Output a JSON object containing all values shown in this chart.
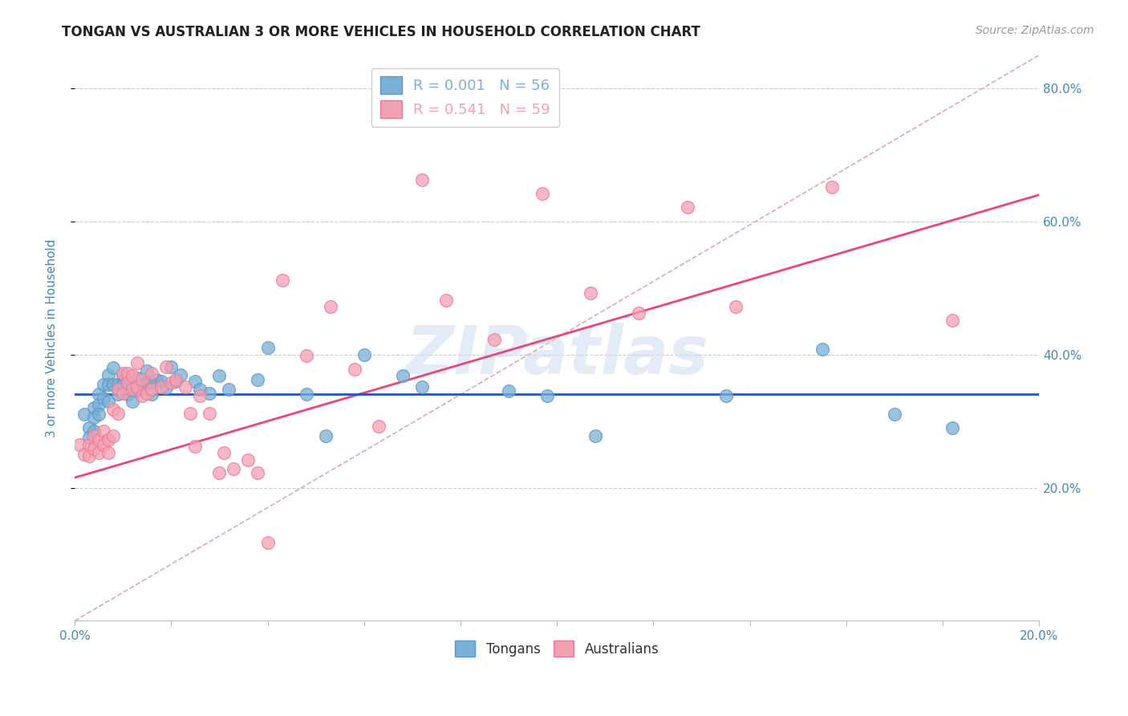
{
  "title": "TONGAN VS AUSTRALIAN 3 OR MORE VEHICLES IN HOUSEHOLD CORRELATION CHART",
  "source": "Source: ZipAtlas.com",
  "ylabel": "3 or more Vehicles in Household",
  "xlim": [
    0.0,
    0.2
  ],
  "ylim": [
    0.0,
    0.85
  ],
  "right_yticks": [
    0.2,
    0.4,
    0.6,
    0.8
  ],
  "right_ytick_labels": [
    "20.0%",
    "40.0%",
    "60.0%",
    "80.0%"
  ],
  "xticks": [
    0.0,
    0.02,
    0.04,
    0.06,
    0.08,
    0.1,
    0.12,
    0.14,
    0.16,
    0.18,
    0.2
  ],
  "xtick_labels": [
    "0.0%",
    "",
    "",
    "",
    "",
    "",
    "",
    "",
    "",
    "",
    "20.0%"
  ],
  "blue_R": "0.001",
  "blue_N": "56",
  "pink_R": "0.541",
  "pink_N": "59",
  "blue_color": "#7BAFD4",
  "blue_edge": "#5599CC",
  "pink_color": "#F4A0B0",
  "pink_edge": "#EE7799",
  "legend_blue_label": "Tongans",
  "legend_pink_label": "Australians",
  "watermark": "ZIPatlas",
  "blue_scatter_x": [
    0.002,
    0.003,
    0.003,
    0.004,
    0.004,
    0.004,
    0.005,
    0.005,
    0.005,
    0.006,
    0.006,
    0.007,
    0.007,
    0.007,
    0.008,
    0.008,
    0.009,
    0.009,
    0.01,
    0.01,
    0.011,
    0.011,
    0.012,
    0.012,
    0.013,
    0.013,
    0.014,
    0.015,
    0.015,
    0.016,
    0.016,
    0.017,
    0.018,
    0.019,
    0.02,
    0.021,
    0.022,
    0.025,
    0.026,
    0.028,
    0.03,
    0.032,
    0.038,
    0.04,
    0.048,
    0.052,
    0.06,
    0.068,
    0.072,
    0.09,
    0.098,
    0.108,
    0.135,
    0.155,
    0.17,
    0.182
  ],
  "blue_scatter_y": [
    0.31,
    0.29,
    0.275,
    0.32,
    0.305,
    0.285,
    0.34,
    0.325,
    0.31,
    0.355,
    0.335,
    0.37,
    0.355,
    0.33,
    0.38,
    0.355,
    0.355,
    0.34,
    0.37,
    0.355,
    0.36,
    0.34,
    0.35,
    0.33,
    0.365,
    0.345,
    0.355,
    0.375,
    0.358,
    0.358,
    0.34,
    0.362,
    0.36,
    0.35,
    0.382,
    0.36,
    0.37,
    0.36,
    0.348,
    0.342,
    0.368,
    0.348,
    0.362,
    0.41,
    0.34,
    0.278,
    0.4,
    0.368,
    0.352,
    0.345,
    0.338,
    0.278,
    0.338,
    0.408,
    0.31,
    0.29
  ],
  "pink_scatter_x": [
    0.001,
    0.002,
    0.003,
    0.003,
    0.004,
    0.004,
    0.005,
    0.005,
    0.006,
    0.006,
    0.007,
    0.007,
    0.008,
    0.008,
    0.009,
    0.009,
    0.01,
    0.01,
    0.011,
    0.011,
    0.012,
    0.012,
    0.013,
    0.013,
    0.014,
    0.014,
    0.015,
    0.016,
    0.016,
    0.018,
    0.019,
    0.02,
    0.021,
    0.023,
    0.024,
    0.025,
    0.026,
    0.028,
    0.03,
    0.031,
    0.033,
    0.036,
    0.038,
    0.04,
    0.043,
    0.048,
    0.053,
    0.058,
    0.063,
    0.072,
    0.077,
    0.087,
    0.097,
    0.107,
    0.117,
    0.127,
    0.137,
    0.157,
    0.182
  ],
  "pink_scatter_y": [
    0.265,
    0.25,
    0.265,
    0.248,
    0.278,
    0.258,
    0.272,
    0.252,
    0.285,
    0.265,
    0.272,
    0.252,
    0.318,
    0.278,
    0.348,
    0.312,
    0.372,
    0.342,
    0.372,
    0.358,
    0.368,
    0.348,
    0.388,
    0.352,
    0.362,
    0.338,
    0.342,
    0.372,
    0.348,
    0.352,
    0.382,
    0.358,
    0.362,
    0.352,
    0.312,
    0.262,
    0.338,
    0.312,
    0.222,
    0.252,
    0.228,
    0.242,
    0.222,
    0.118,
    0.512,
    0.398,
    0.472,
    0.378,
    0.292,
    0.662,
    0.482,
    0.422,
    0.642,
    0.492,
    0.462,
    0.622,
    0.472,
    0.652,
    0.452
  ],
  "blue_line_y": 0.34,
  "pink_line_x0": 0.0,
  "pink_line_y0": 0.215,
  "pink_line_x1": 0.2,
  "pink_line_y1": 0.64,
  "diag_line_x0": 0.0,
  "diag_line_y0": 0.0,
  "diag_line_x1": 0.2,
  "diag_line_y1": 0.85,
  "grid_color": "#CCCCCC",
  "grid_linestyle": "--",
  "title_fontsize": 12,
  "ylabel_fontsize": 11,
  "tick_fontsize": 11,
  "legend_fontsize": 13,
  "watermark_fontsize": 60,
  "axis_color": "#4488BB",
  "title_color": "#222222",
  "source_color": "#999999",
  "blue_line_color": "#2255BB",
  "pink_line_color": "#EE4477",
  "diag_color": "#DDAAAA"
}
